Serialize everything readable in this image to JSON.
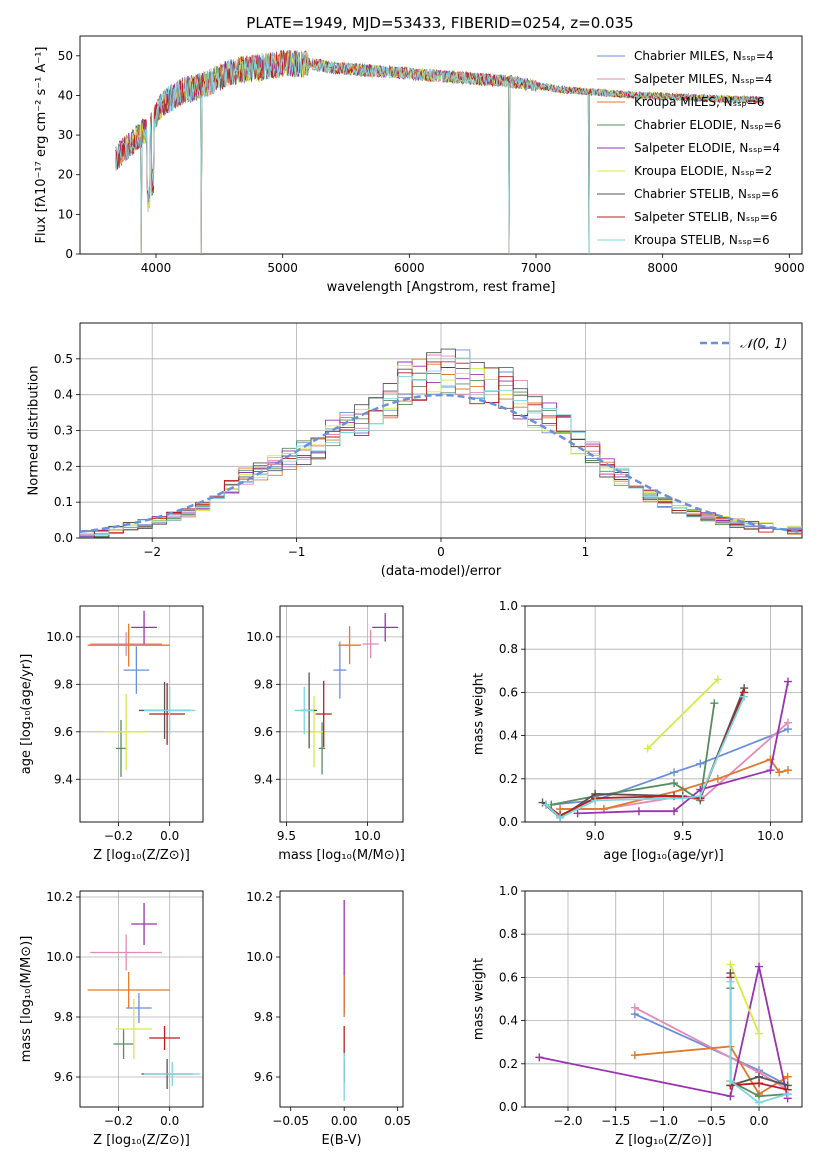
{
  "figure_title": "PLATE=1949, MJD=53433, FIBERID=0254, z=0.035",
  "models": [
    {
      "label": "Chabrier MILES, Nₛₛₚ=4",
      "color": "#6a8fdb"
    },
    {
      "label": "Salpeter MILES, Nₛₛₚ=4",
      "color": "#e58ab5"
    },
    {
      "label": "Kroupa MILES, Nₛₛₚ=6",
      "color": "#e07a2c"
    },
    {
      "label": "Chabrier ELODIE, Nₛₛₚ=6",
      "color": "#5a8c60"
    },
    {
      "label": "Salpeter ELODIE, Nₛₛₚ=4",
      "color": "#9b32b0"
    },
    {
      "label": "Kroupa ELODIE, Nₛₛₚ=2",
      "color": "#d6ea45"
    },
    {
      "label": "Chabrier STELIB, Nₛₛₚ=6",
      "color": "#555555"
    },
    {
      "label": "Salpeter STELIB, Nₛₛₚ=6",
      "color": "#bb1c1c"
    },
    {
      "label": "Kroupa STELIB, Nₛₛₚ=6",
      "color": "#7fd6e0"
    }
  ],
  "chart_data": [
    {
      "id": "spectrum",
      "type": "line",
      "xlabel": "wavelength [Angstrom, rest frame]",
      "ylabel": "Flux [fλ10⁻¹⁷ erg cm⁻² s⁻¹ A⁻¹]",
      "xlim": [
        3400,
        9100
      ],
      "ylim": [
        0,
        55
      ],
      "xticks": [
        4000,
        5000,
        6000,
        7000,
        8000,
        9000
      ],
      "yticks": [
        0,
        10,
        20,
        30,
        40,
        50
      ],
      "grid": false,
      "legend": "top-right",
      "anchor_x": [
        3680,
        3800,
        3950,
        4050,
        4200,
        4400,
        4600,
        4800,
        5000,
        5200,
        5400,
        5600,
        5800,
        6000,
        6200,
        6400,
        6600,
        6800,
        7000,
        7200,
        7400,
        7600,
        7800,
        8000,
        8200,
        8400,
        8600,
        8800
      ],
      "anchor_y": [
        24,
        28,
        32,
        38,
        41,
        43,
        46,
        47,
        48,
        48,
        47,
        46.5,
        46,
        45.5,
        45,
        44.5,
        44,
        43.5,
        42.5,
        41.5,
        41,
        40.5,
        40,
        39.8,
        39.5,
        39.2,
        39,
        38.8
      ],
      "drops": [
        {
          "x": 3885,
          "y": 0
        },
        {
          "x": 4360,
          "y": 0
        },
        {
          "x": 6790,
          "y": 0
        },
        {
          "x": 7420,
          "y": 0
        }
      ]
    },
    {
      "id": "residuals",
      "type": "histogram",
      "xlabel": "(data-model)/error",
      "ylabel": "Normed distribution",
      "xlim": [
        -2.5,
        2.5
      ],
      "ylim": [
        0,
        0.6
      ],
      "xticks": [
        -2,
        -1,
        0,
        1,
        2
      ],
      "yticks": [
        0,
        0.1,
        0.2,
        0.3,
        0.4,
        0.5
      ],
      "grid": true,
      "legend": "top-right",
      "legend_label": "𝒩(0, 1)",
      "reference_curve": {
        "mean": 0,
        "sigma": 1,
        "color": "#6a8fdb"
      },
      "bin_width": 0.1,
      "centers": [
        -2.45,
        -2.35,
        -2.25,
        -2.15,
        -2.05,
        -1.95,
        -1.85,
        -1.75,
        -1.65,
        -1.55,
        -1.45,
        -1.35,
        -1.25,
        -1.15,
        -1.05,
        -0.95,
        -0.85,
        -0.75,
        -0.65,
        -0.55,
        -0.45,
        -0.35,
        -0.25,
        -0.15,
        -0.05,
        0.05,
        0.15,
        0.25,
        0.35,
        0.45,
        0.55,
        0.65,
        0.75,
        0.85,
        0.95,
        1.05,
        1.15,
        1.25,
        1.35,
        1.45,
        1.55,
        1.65,
        1.75,
        1.85,
        1.95,
        2.05,
        2.15,
        2.25,
        2.35,
        2.45
      ],
      "profile": [
        0.01,
        0.015,
        0.02,
        0.03,
        0.04,
        0.05,
        0.06,
        0.07,
        0.09,
        0.11,
        0.14,
        0.17,
        0.19,
        0.2,
        0.22,
        0.24,
        0.25,
        0.29,
        0.31,
        0.33,
        0.36,
        0.39,
        0.43,
        0.44,
        0.45,
        0.46,
        0.46,
        0.44,
        0.43,
        0.42,
        0.39,
        0.36,
        0.33,
        0.3,
        0.27,
        0.24,
        0.2,
        0.17,
        0.14,
        0.12,
        0.1,
        0.08,
        0.07,
        0.06,
        0.05,
        0.04,
        0.035,
        0.03,
        0.025,
        0.02
      ]
    },
    {
      "id": "age-vs-Z",
      "type": "scatter",
      "xlabel": "Z [log₁₀(Z/Z⊙)]",
      "ylabel": "age  [log₁₀(age/yr)]",
      "xlim": [
        -0.35,
        0.13
      ],
      "ylim": [
        9.22,
        10.13
      ],
      "xticks": [
        -0.2,
        0.0
      ],
      "xtick_labels": [
        "−0.2",
        "0.0"
      ],
      "yticks": [
        9.4,
        9.6,
        9.8,
        10.0
      ],
      "grid": true,
      "points": [
        {
          "model": 0,
          "x": -0.13,
          "y": 9.86,
          "xerr": 0.05,
          "yerr": 0.1
        },
        {
          "model": 1,
          "x": -0.17,
          "y": 9.97,
          "xerr": 0.14,
          "yerr": 0.05
        },
        {
          "model": 2,
          "x": -0.16,
          "y": 9.965,
          "xerr": 0.16,
          "yerr": 0.09
        },
        {
          "model": 3,
          "x": -0.19,
          "y": 9.53,
          "xerr": 0.02,
          "yerr": 0.12
        },
        {
          "model": 4,
          "x": -0.1,
          "y": 10.04,
          "xerr": 0.05,
          "yerr": 0.07
        },
        {
          "model": 5,
          "x": -0.17,
          "y": 9.6,
          "xerr": 0.08,
          "yerr": 0.16
        },
        {
          "model": 6,
          "x": -0.02,
          "y": 9.69,
          "xerr": 0.1,
          "yerr": 0.12
        },
        {
          "model": 7,
          "x": -0.01,
          "y": 9.675,
          "xerr": 0.07,
          "yerr": 0.13
        },
        {
          "model": 8,
          "x": 0.0,
          "y": 9.69,
          "xerr": 0.1,
          "yerr": 0.1
        }
      ]
    },
    {
      "id": "age-vs-mass",
      "type": "scatter",
      "xlabel": "mass [log₁₀(M/M⊙)]",
      "ylabel": "",
      "xlim": [
        9.46,
        10.22
      ],
      "ylim": [
        9.22,
        10.13
      ],
      "xticks": [
        9.5,
        10.0
      ],
      "yticks": [
        9.4,
        9.6,
        9.8,
        10.0
      ],
      "grid": true,
      "points": [
        {
          "model": 0,
          "x": 9.83,
          "y": 9.86,
          "xerr": 0.04,
          "yerr": 0.12
        },
        {
          "model": 1,
          "x": 10.02,
          "y": 9.97,
          "xerr": 0.05,
          "yerr": 0.06
        },
        {
          "model": 2,
          "x": 9.89,
          "y": 9.965,
          "xerr": 0.07,
          "yerr": 0.08
        },
        {
          "model": 3,
          "x": 9.72,
          "y": 9.53,
          "xerr": 0.02,
          "yerr": 0.11
        },
        {
          "model": 4,
          "x": 10.11,
          "y": 10.04,
          "xerr": 0.08,
          "yerr": 0.06
        },
        {
          "model": 5,
          "x": 9.67,
          "y": 9.6,
          "xerr": 0.07,
          "yerr": 0.15
        },
        {
          "model": 6,
          "x": 9.64,
          "y": 9.69,
          "xerr": 0.05,
          "yerr": 0.16
        },
        {
          "model": 7,
          "x": 9.73,
          "y": 9.675,
          "xerr": 0.05,
          "yerr": 0.14
        },
        {
          "model": 8,
          "x": 9.61,
          "y": 9.69,
          "xerr": 0.06,
          "yerr": 0.1
        }
      ]
    },
    {
      "id": "weight-vs-age",
      "type": "line",
      "xlabel": "age  [log₁₀(age/yr)]",
      "ylabel": "mass weight",
      "xlim": [
        8.6,
        10.18
      ],
      "ylim": [
        0,
        1
      ],
      "xticks": [
        9.0,
        9.5,
        10.0
      ],
      "yticks": [
        0.0,
        0.2,
        0.4,
        0.6,
        0.8,
        1.0
      ],
      "grid": true,
      "series": [
        {
          "model": 0,
          "x": [
            8.75,
            9.0,
            9.45,
            9.6,
            10.1
          ],
          "y": [
            0.08,
            0.1,
            0.23,
            0.27,
            0.43
          ]
        },
        {
          "model": 1,
          "x": [
            8.8,
            9.05,
            9.5,
            9.6,
            10.1
          ],
          "y": [
            0.06,
            0.06,
            0.12,
            0.1,
            0.46
          ]
        },
        {
          "model": 2,
          "x": [
            8.8,
            9.05,
            9.5,
            9.7,
            10.0,
            10.05,
            10.1
          ],
          "y": [
            0.06,
            0.06,
            0.15,
            0.2,
            0.29,
            0.23,
            0.24
          ]
        },
        {
          "model": 3,
          "x": [
            8.75,
            9.0,
            9.45,
            9.6,
            9.68
          ],
          "y": [
            0.08,
            0.12,
            0.18,
            0.1,
            0.55
          ]
        },
        {
          "model": 4,
          "x": [
            8.9,
            9.25,
            9.45,
            9.6,
            10.0,
            10.1
          ],
          "y": [
            0.04,
            0.05,
            0.05,
            0.15,
            0.24,
            0.65
          ]
        },
        {
          "model": 5,
          "x": [
            9.3,
            9.7
          ],
          "y": [
            0.34,
            0.66
          ]
        },
        {
          "model": 6,
          "x": [
            8.7,
            8.8,
            9.0,
            9.5,
            9.6,
            9.85
          ],
          "y": [
            0.09,
            0.02,
            0.13,
            0.12,
            0.11,
            0.62
          ]
        },
        {
          "model": 7,
          "x": [
            8.72,
            8.8,
            9.0,
            9.45,
            9.6,
            9.85
          ],
          "y": [
            0.08,
            0.03,
            0.11,
            0.12,
            0.11,
            0.6
          ]
        },
        {
          "model": 8,
          "x": [
            8.72,
            8.8,
            9.0,
            9.5,
            9.6,
            9.85
          ],
          "y": [
            0.08,
            0.02,
            0.1,
            0.11,
            0.12,
            0.58
          ]
        }
      ]
    },
    {
      "id": "mass-vs-Z",
      "type": "scatter",
      "xlabel": "Z [log₁₀(Z/Z⊙)]",
      "ylabel": "mass [log₁₀(M/M⊙)]",
      "xlim": [
        -0.35,
        0.13
      ],
      "ylim": [
        9.5,
        10.22
      ],
      "xticks": [
        -0.2,
        0.0
      ],
      "xtick_labels": [
        "−0.2",
        "0.0"
      ],
      "yticks": [
        9.6,
        9.8,
        10.0,
        10.2
      ],
      "grid": true,
      "points": [
        {
          "model": 0,
          "x": -0.12,
          "y": 9.83,
          "xerr": 0.05,
          "yerr": 0.05
        },
        {
          "model": 1,
          "x": -0.17,
          "y": 10.015,
          "xerr": 0.14,
          "yerr": 0.06
        },
        {
          "model": 2,
          "x": -0.16,
          "y": 9.89,
          "xerr": 0.16,
          "yerr": 0.06
        },
        {
          "model": 3,
          "x": -0.18,
          "y": 9.71,
          "xerr": 0.04,
          "yerr": 0.05
        },
        {
          "model": 4,
          "x": -0.1,
          "y": 10.11,
          "xerr": 0.05,
          "yerr": 0.07
        },
        {
          "model": 5,
          "x": -0.14,
          "y": 9.76,
          "xerr": 0.07,
          "yerr": 0.1
        },
        {
          "model": 6,
          "x": -0.01,
          "y": 9.61,
          "xerr": 0.1,
          "yerr": 0.05
        },
        {
          "model": 7,
          "x": -0.02,
          "y": 9.73,
          "xerr": 0.06,
          "yerr": 0.04
        },
        {
          "model": 8,
          "x": 0.01,
          "y": 9.61,
          "xerr": 0.11,
          "yerr": 0.04
        }
      ]
    },
    {
      "id": "mass-vs-EBV",
      "type": "scatter",
      "xlabel": "E(B-V)",
      "ylabel": "",
      "xlim": [
        -0.06,
        0.055
      ],
      "ylim": [
        9.5,
        10.22
      ],
      "xticks": [
        -0.05,
        0.0,
        0.05
      ],
      "xtick_labels": [
        "−0.05",
        "0.00",
        "0.05"
      ],
      "yticks": [
        9.6,
        9.8,
        10.0,
        10.2
      ],
      "grid": false,
      "points": [
        {
          "model": 4,
          "x": 0.0,
          "y": 10.0,
          "xerr": 0.0,
          "yerr": 0.19
        },
        {
          "model": 2,
          "x": 0.0,
          "y": 9.87,
          "xerr": 0.0,
          "yerr": 0.07
        },
        {
          "model": 7,
          "x": 0.0,
          "y": 9.72,
          "xerr": 0.0,
          "yerr": 0.05
        },
        {
          "model": 3,
          "x": 0.0,
          "y": 9.62,
          "xerr": 0.0,
          "yerr": 0.04
        },
        {
          "model": 8,
          "x": 0.0,
          "y": 9.6,
          "xerr": 0.0,
          "yerr": 0.08
        }
      ]
    },
    {
      "id": "weight-vs-Z",
      "type": "line",
      "xlabel": "Z [log₁₀(Z/Z⊙)]",
      "ylabel": "mass weight",
      "xlim": [
        -2.45,
        0.45
      ],
      "ylim": [
        0,
        1
      ],
      "xticks": [
        -2.0,
        -1.5,
        -1.0,
        -0.5,
        0.0
      ],
      "xtick_labels": [
        "−2.0",
        "−1.5",
        "−1.0",
        "−0.5",
        "0.0"
      ],
      "yticks": [
        0.0,
        0.2,
        0.4,
        0.6,
        0.8,
        1.0
      ],
      "grid": true,
      "series": [
        {
          "model": 0,
          "x": [
            -1.3,
            0.0,
            0.3
          ],
          "y": [
            0.43,
            0.17,
            0.1
          ]
        },
        {
          "model": 1,
          "x": [
            -1.3,
            0.0,
            0.3
          ],
          "y": [
            0.46,
            0.16,
            0.08
          ]
        },
        {
          "model": 2,
          "x": [
            -1.3,
            -0.3,
            0.0,
            0.3
          ],
          "y": [
            0.24,
            0.28,
            0.06,
            0.14
          ]
        },
        {
          "model": 3,
          "x": [
            -0.3,
            -0.3,
            0.0,
            0.3
          ],
          "y": [
            0.55,
            0.12,
            0.05,
            0.06
          ]
        },
        {
          "model": 4,
          "x": [
            -2.3,
            -0.3,
            0.0,
            0.3
          ],
          "y": [
            0.23,
            0.05,
            0.65,
            0.04
          ]
        },
        {
          "model": 5,
          "x": [
            -0.3,
            0.0
          ],
          "y": [
            0.66,
            0.34
          ]
        },
        {
          "model": 6,
          "x": [
            -0.3,
            -0.3,
            0.0,
            0.3
          ],
          "y": [
            0.62,
            0.1,
            0.14,
            0.1
          ]
        },
        {
          "model": 7,
          "x": [
            -0.3,
            -0.3,
            0.0,
            0.3
          ],
          "y": [
            0.6,
            0.1,
            0.11,
            0.08
          ]
        },
        {
          "model": 8,
          "x": [
            -0.3,
            -0.3,
            0.0,
            0.3
          ],
          "y": [
            0.58,
            0.12,
            0.02,
            0.06
          ]
        }
      ]
    }
  ]
}
